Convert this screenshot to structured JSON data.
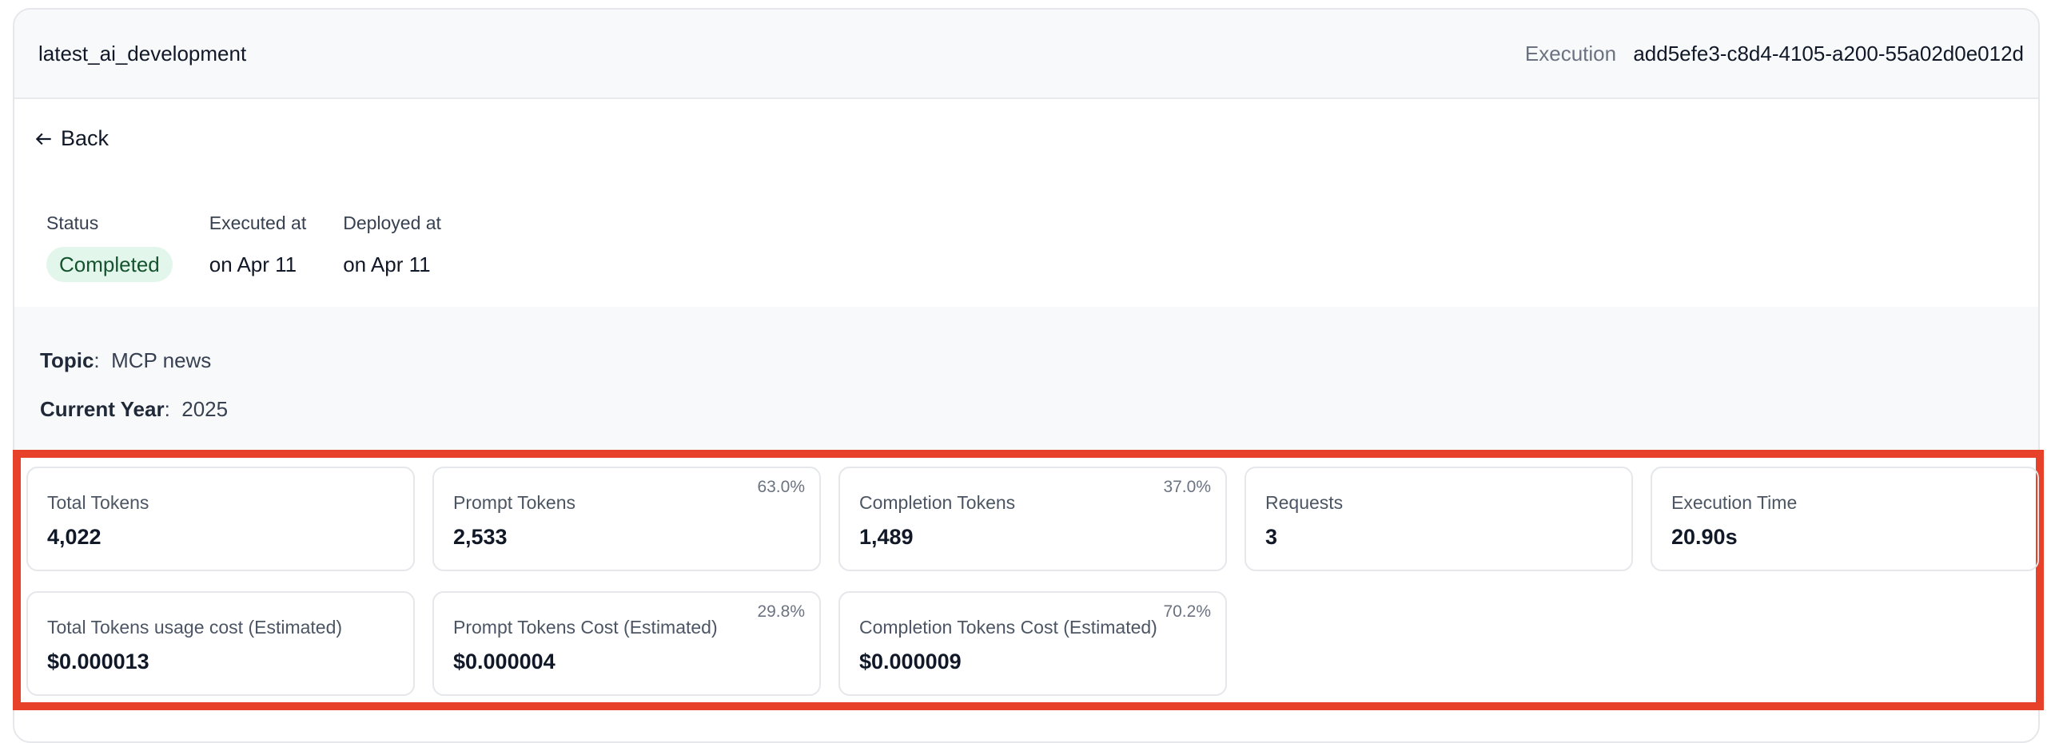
{
  "header": {
    "title": "latest_ai_development",
    "execution_label": "Execution",
    "execution_id": "add5efe3-c8d4-4105-a200-55a02d0e012d"
  },
  "back_label": "Back",
  "meta": {
    "status_label": "Status",
    "status": "Completed",
    "status_color": "#14532d",
    "executed_label": "Executed at",
    "executed": "on Apr 11",
    "deployed_label": "Deployed at",
    "deployed": "on Apr 11"
  },
  "inputs": [
    {
      "key": "Topic",
      "value": "MCP news"
    },
    {
      "key": "Current Year",
      "value": "2025"
    }
  ],
  "highlight_color": "#e8412a",
  "stats": [
    {
      "label": "Total Tokens",
      "value": "4,022"
    },
    {
      "label": "Prompt Tokens",
      "value": "2,533",
      "pct": "63.0%"
    },
    {
      "label": "Completion Tokens",
      "value": "1,489",
      "pct": "37.0%"
    },
    {
      "label": "Requests",
      "value": "3"
    },
    {
      "label": "Execution Time",
      "value": "20.90s"
    },
    {
      "label": "Total Tokens usage cost (Estimated)",
      "value": "$0.000013"
    },
    {
      "label": "Prompt Tokens Cost (Estimated)",
      "value": "$0.000004",
      "pct": "29.8%"
    },
    {
      "label": "Completion Tokens Cost (Estimated)",
      "value": "$0.000009",
      "pct": "70.2%"
    }
  ]
}
